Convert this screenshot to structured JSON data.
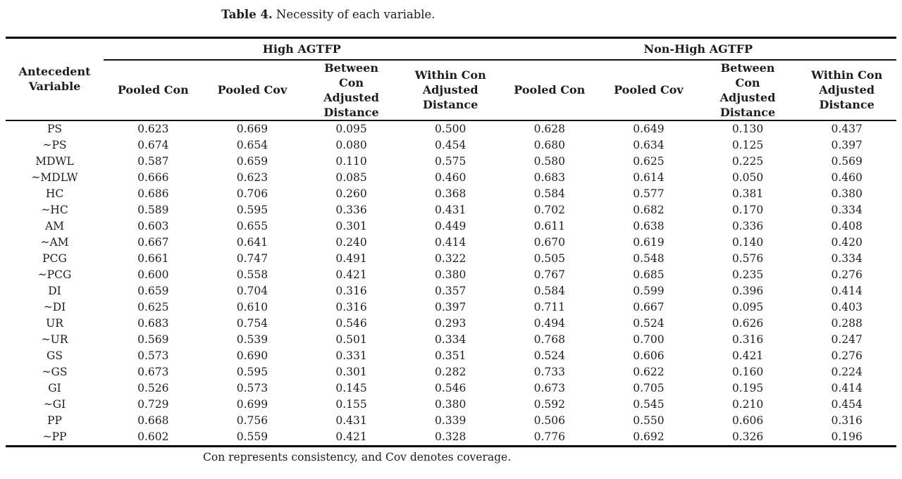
{
  "caption": {
    "label": "Table 4.",
    "text": " Necessity of each variable."
  },
  "table": {
    "row_header": "Antecedent Variable",
    "group_headers": [
      "High AGTFP",
      "Non-High AGTFP"
    ],
    "sub_headers": [
      "Pooled Con",
      "Pooled Cov",
      "Between Con Adjusted Distance",
      "Within Con Adjusted Distance"
    ],
    "rows": [
      {
        "variable": "PS",
        "values": [
          "0.623",
          "0.669",
          "0.095",
          "0.500",
          "0.628",
          "0.649",
          "0.130",
          "0.437"
        ]
      },
      {
        "variable": "~PS",
        "values": [
          "0.674",
          "0.654",
          "0.080",
          "0.454",
          "0.680",
          "0.634",
          "0.125",
          "0.397"
        ]
      },
      {
        "variable": "MDWL",
        "values": [
          "0.587",
          "0.659",
          "0.110",
          "0.575",
          "0.580",
          "0.625",
          "0.225",
          "0.569"
        ]
      },
      {
        "variable": "~MDLW",
        "values": [
          "0.666",
          "0.623",
          "0.085",
          "0.460",
          "0.683",
          "0.614",
          "0.050",
          "0.460"
        ]
      },
      {
        "variable": "HC",
        "values": [
          "0.686",
          "0.706",
          "0.260",
          "0.368",
          "0.584",
          "0.577",
          "0.381",
          "0.380"
        ]
      },
      {
        "variable": "~HC",
        "values": [
          "0.589",
          "0.595",
          "0.336",
          "0.431",
          "0.702",
          "0.682",
          "0.170",
          "0.334"
        ]
      },
      {
        "variable": "AM",
        "values": [
          "0.603",
          "0.655",
          "0.301",
          "0.449",
          "0.611",
          "0.638",
          "0.336",
          "0.408"
        ]
      },
      {
        "variable": "~AM",
        "values": [
          "0.667",
          "0.641",
          "0.240",
          "0.414",
          "0.670",
          "0.619",
          "0.140",
          "0.420"
        ]
      },
      {
        "variable": "PCG",
        "values": [
          "0.661",
          "0.747",
          "0.491",
          "0.322",
          "0.505",
          "0.548",
          "0.576",
          "0.334"
        ]
      },
      {
        "variable": "~PCG",
        "values": [
          "0.600",
          "0.558",
          "0.421",
          "0.380",
          "0.767",
          "0.685",
          "0.235",
          "0.276"
        ]
      },
      {
        "variable": "DI",
        "values": [
          "0.659",
          "0.704",
          "0.316",
          "0.357",
          "0.584",
          "0.599",
          "0.396",
          "0.414"
        ]
      },
      {
        "variable": "~DI",
        "values": [
          "0.625",
          "0.610",
          "0.316",
          "0.397",
          "0.711",
          "0.667",
          "0.095",
          "0.403"
        ]
      },
      {
        "variable": "UR",
        "values": [
          "0.683",
          "0.754",
          "0.546",
          "0.293",
          "0.494",
          "0.524",
          "0.626",
          "0.288"
        ]
      },
      {
        "variable": "~UR",
        "values": [
          "0.569",
          "0.539",
          "0.501",
          "0.334",
          "0.768",
          "0.700",
          "0.316",
          "0.247"
        ]
      },
      {
        "variable": "GS",
        "values": [
          "0.573",
          "0.690",
          "0.331",
          "0.351",
          "0.524",
          "0.606",
          "0.421",
          "0.276"
        ]
      },
      {
        "variable": "~GS",
        "values": [
          "0.673",
          "0.595",
          "0.301",
          "0.282",
          "0.733",
          "0.622",
          "0.160",
          "0.224"
        ]
      },
      {
        "variable": "GI",
        "values": [
          "0.526",
          "0.573",
          "0.145",
          "0.546",
          "0.673",
          "0.705",
          "0.195",
          "0.414"
        ]
      },
      {
        "variable": "~GI",
        "values": [
          "0.729",
          "0.699",
          "0.155",
          "0.380",
          "0.592",
          "0.545",
          "0.210",
          "0.454"
        ]
      },
      {
        "variable": "PP",
        "values": [
          "0.668",
          "0.756",
          "0.431",
          "0.339",
          "0.506",
          "0.550",
          "0.606",
          "0.316"
        ]
      },
      {
        "variable": "~PP",
        "values": [
          "0.602",
          "0.559",
          "0.421",
          "0.328",
          "0.776",
          "0.692",
          "0.326",
          "0.196"
        ]
      }
    ]
  },
  "footnote": "Con represents consistency, and Cov denotes coverage.",
  "colors": {
    "text": "#1d1d1d",
    "rule": "#000000"
  }
}
